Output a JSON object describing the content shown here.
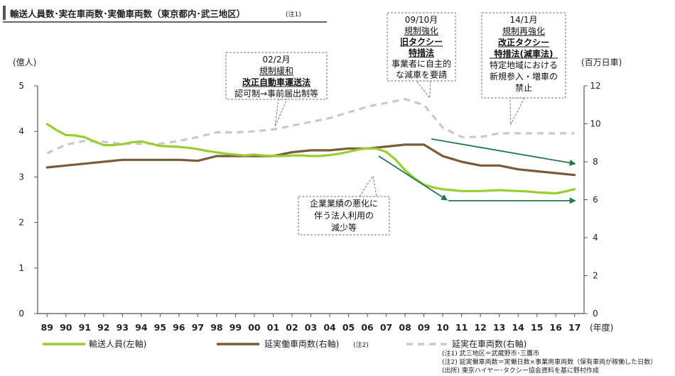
{
  "title": "輸送人員数･実在車両数･実働車両数（東京都内･武三地区）",
  "title_note": "(注1)",
  "chart_data": {
    "type": "line",
    "x_label": "(年度)",
    "y_left_label": "(億人)",
    "y_right_label": "(百万日車)",
    "y_left_range": [
      0,
      5
    ],
    "y_left_ticks": [
      "0",
      "1",
      "2",
      "3",
      "4",
      "5"
    ],
    "y_right_range": [
      0,
      12
    ],
    "y_right_ticks": [
      "0",
      "2",
      "4",
      "6",
      "8",
      "10",
      "12"
    ],
    "categories": [
      "89",
      "90",
      "91",
      "92",
      "93",
      "94",
      "95",
      "96",
      "97",
      "98",
      "99",
      "00",
      "01",
      "02",
      "03",
      "04",
      "05",
      "06",
      "07",
      "08",
      "09",
      "10",
      "11",
      "12",
      "13",
      "14",
      "15",
      "16",
      "17"
    ],
    "series": [
      {
        "name": "輸送人員(左軸)",
        "axis": "left",
        "color": "#9ACD32",
        "style": "solid",
        "x": [
          1989,
          1989.5,
          1990,
          1990.5,
          1991,
          1991.5,
          1992,
          1992.5,
          1993,
          1993.5,
          1994,
          1994.5,
          1995,
          1995.5,
          1996,
          1996.5,
          1997,
          1997.5,
          1998,
          1998.5,
          1999,
          1999.5,
          2000,
          2000.5,
          2001,
          2001.5,
          2002,
          2002.5,
          2003,
          2003.5,
          2004,
          2004.5,
          2005,
          2005.5,
          2006,
          2006.5,
          2007,
          2007.5,
          2008,
          2008.5,
          2009,
          2009.5,
          2010,
          2010.5,
          2011,
          2011.5,
          2012,
          2012.5,
          2013,
          2013.5,
          2014,
          2014.5,
          2015,
          2015.5,
          2016,
          2016.5,
          2017
        ],
        "y": [
          4.16,
          4.03,
          3.92,
          3.91,
          3.87,
          3.78,
          3.7,
          3.7,
          3.72,
          3.76,
          3.78,
          3.73,
          3.68,
          3.67,
          3.66,
          3.64,
          3.61,
          3.57,
          3.54,
          3.51,
          3.49,
          3.47,
          3.49,
          3.47,
          3.46,
          3.46,
          3.47,
          3.47,
          3.46,
          3.46,
          3.48,
          3.51,
          3.55,
          3.6,
          3.63,
          3.62,
          3.55,
          3.38,
          3.15,
          2.97,
          2.83,
          2.77,
          2.73,
          2.71,
          2.69,
          2.69,
          2.69,
          2.7,
          2.71,
          2.7,
          2.69,
          2.68,
          2.66,
          2.65,
          2.64,
          2.68,
          2.73
        ]
      },
      {
        "name": "延実働車両数(右軸)",
        "axis": "right",
        "color": "#7B5A3A",
        "style": "solid",
        "x": [
          1989,
          1990,
          1991,
          1992,
          1993,
          1994,
          1995,
          1996,
          1997,
          1998,
          1999,
          2000,
          2001,
          2002,
          2003,
          2004,
          2005,
          2006,
          2007,
          2008,
          2009,
          2010,
          2011,
          2012,
          2013,
          2014,
          2015,
          2016,
          2017
        ],
        "y": [
          7.7,
          7.8,
          7.9,
          8.0,
          8.1,
          8.1,
          8.1,
          8.1,
          8.05,
          8.3,
          8.3,
          8.3,
          8.3,
          8.5,
          8.6,
          8.6,
          8.7,
          8.7,
          8.8,
          8.9,
          8.9,
          8.3,
          8.0,
          7.8,
          7.8,
          7.6,
          7.5,
          7.4,
          7.3
        ]
      },
      {
        "name": "延実在車両数(右軸)",
        "axis": "right",
        "color": "#C9C9C9",
        "style": "dashed",
        "x": [
          1989,
          1990,
          1991,
          1992,
          1993,
          1994,
          1995,
          1996,
          1997,
          1998,
          1999,
          2000,
          2001,
          2002,
          2003,
          2004,
          2005,
          2006,
          2007,
          2008,
          2009,
          2010,
          2011,
          2012,
          2013,
          2014,
          2015,
          2016,
          2017
        ],
        "y": [
          8.45,
          8.9,
          9.1,
          9.05,
          8.95,
          8.95,
          8.95,
          9.1,
          9.3,
          9.55,
          9.55,
          9.6,
          9.7,
          9.9,
          10.1,
          10.3,
          10.6,
          10.9,
          11.1,
          11.3,
          11.0,
          9.8,
          9.3,
          9.3,
          9.5,
          9.5,
          9.5,
          9.5,
          9.5
        ]
      }
    ],
    "trend_arrows": [
      {
        "from": [
          2006.6,
          8.3
        ],
        "to": [
          2010.2,
          6.0
        ]
      },
      {
        "from": [
          2010.3,
          5.95
        ],
        "to": [
          2017.0,
          5.95
        ]
      },
      {
        "from": [
          2009.4,
          9.2
        ],
        "to": [
          2017.0,
          7.9
        ]
      }
    ]
  },
  "annotations": {
    "a0202": {
      "lines": [
        "02/2月",
        "規制緩和",
        "改正自動車運送法",
        "認可制→事前届出制等"
      ]
    },
    "a0910": {
      "lines": [
        "09/10月",
        "規制強化",
        "旧タクシー",
        "特措法",
        "事業者に自主的",
        "な減車を要請"
      ]
    },
    "a1401": {
      "lines": [
        "14/1月",
        "規制再強化",
        "改正タクシー",
        "特措法(減車法)",
        "特定地域における",
        "新規参入・増車の",
        "禁止"
      ]
    },
    "corp": {
      "lines": [
        "企業業績の悪化に",
        "伴う法人利用の",
        "減少等"
      ]
    }
  },
  "legend": {
    "item1": "輸送人員(左軸)",
    "item2": "延実働車両数(右軸)",
    "item2_note": "(注2)",
    "item3": "延実在車両数(右軸)"
  },
  "notes": [
    "(注1) 武三地区＝武蔵野市･三鷹市",
    "(注2) 延実働車両数＝実働日数×事業用車両数（保有車両が稼働した日数）",
    "(出所) 東京ハイヤー･タクシー協会資料を基に野村作成"
  ]
}
